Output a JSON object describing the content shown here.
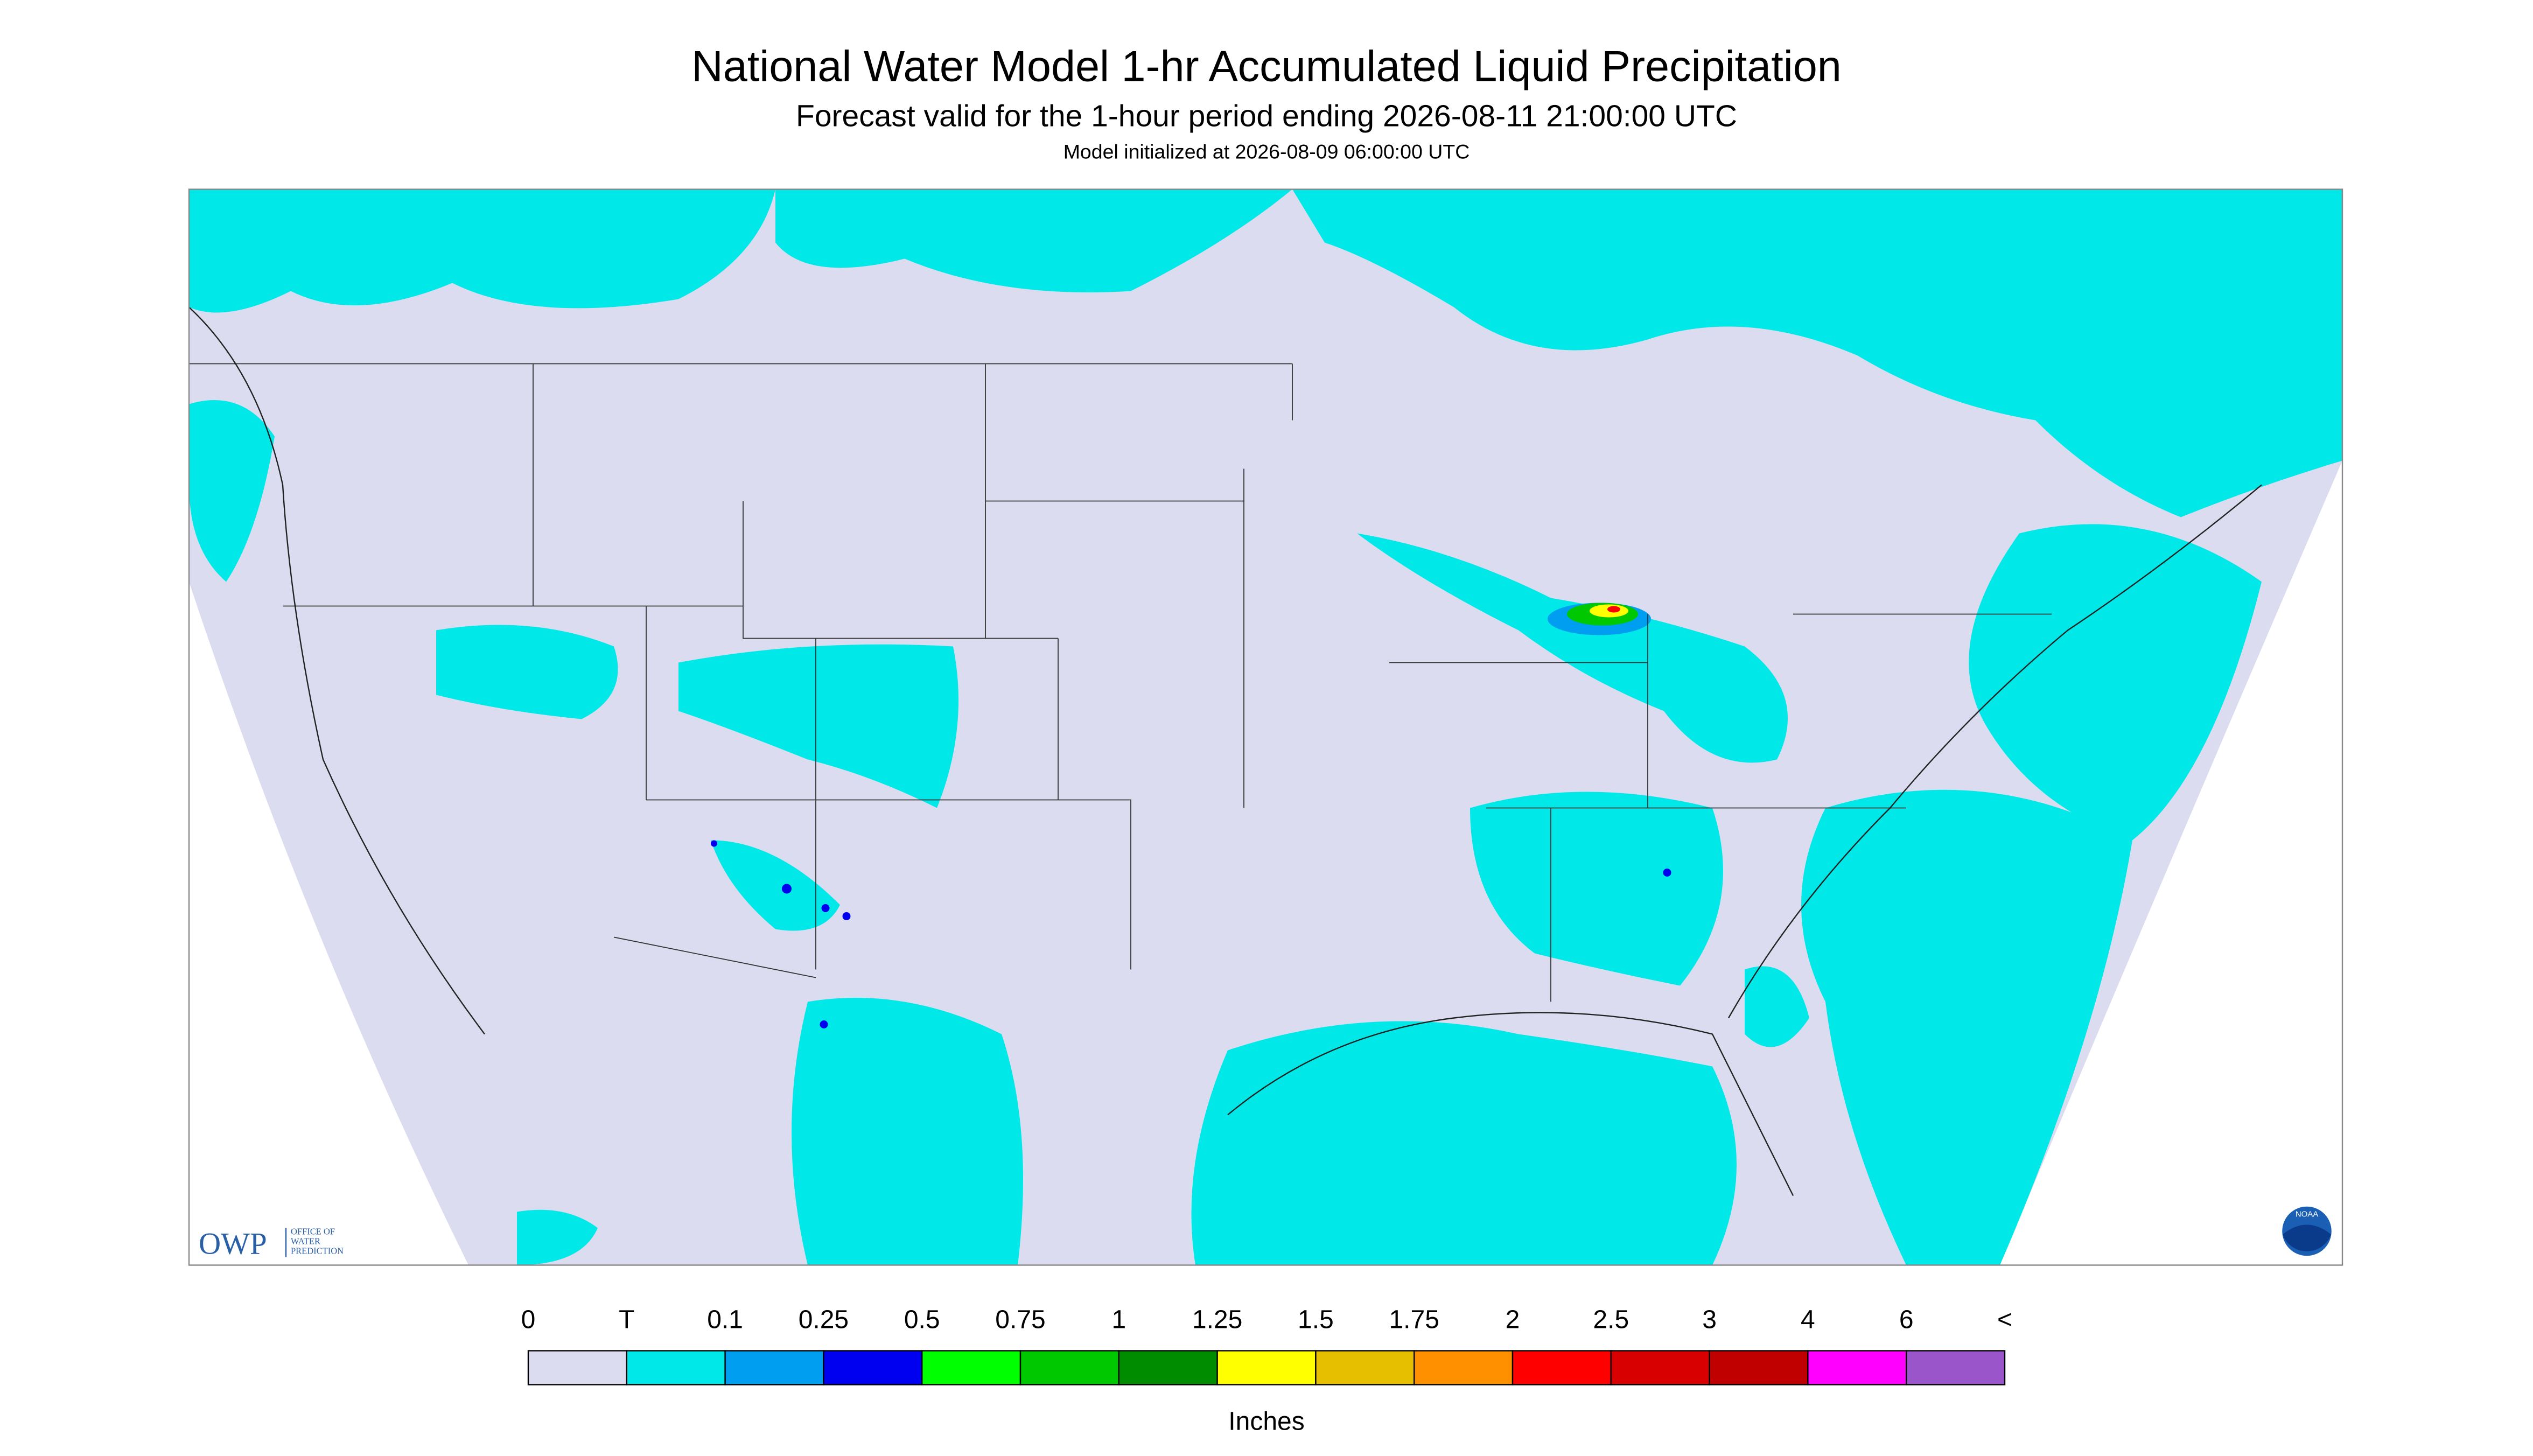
{
  "header": {
    "title": "National Water Model 1-hr Accumulated Liquid Precipitation",
    "subtitle": "Forecast valid for the 1-hour period ending 2026-08-11 21:00:00 UTC",
    "initialized": "Model initialized at 2026-08-09 06:00:00 UTC"
  },
  "legend": {
    "labels": [
      "0",
      "T",
      "0.1",
      "0.25",
      "0.5",
      "0.75",
      "1",
      "1.25",
      "1.5",
      "1.75",
      "2",
      "2.5",
      "3",
      "4",
      "6",
      "<"
    ],
    "colors": [
      "#dcdcf0",
      "#00e8e8",
      "#009ef0",
      "#0000f0",
      "#00ff00",
      "#00c800",
      "#008c00",
      "#ffff00",
      "#e6c000",
      "#ff9000",
      "#ff0000",
      "#d80000",
      "#c00000",
      "#ff00ff",
      "#9955c9"
    ],
    "units": "Inches"
  },
  "logos": {
    "owp": "OWP",
    "owp_text": [
      "OFFICE OF",
      "WATER",
      "PREDICTION"
    ],
    "noaa": "NOAA"
  }
}
